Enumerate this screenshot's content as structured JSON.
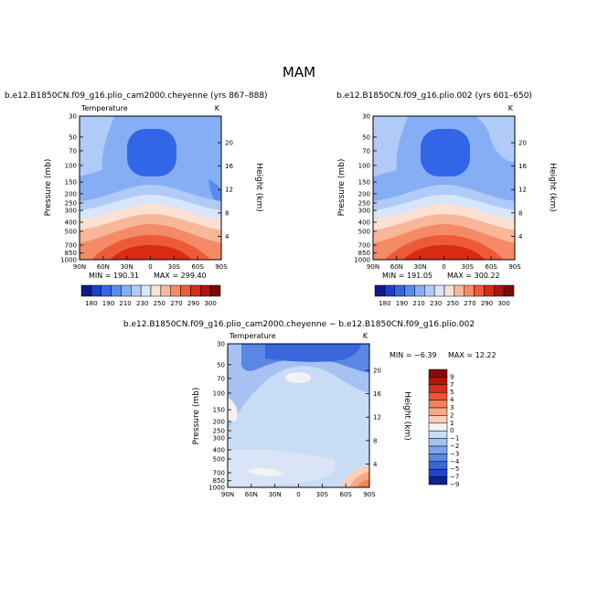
{
  "page": {
    "title": "MAM"
  },
  "chart_data": [
    {
      "type": "heatmap",
      "title": "b.e12.B1850CN.f09_g16.plio_cam2000.cheyenne (yrs 867–888)",
      "field_label": "Temperature",
      "units": "K",
      "ylabel": "Pressure (mb)",
      "ylabel_right": "Height (km)",
      "x_ticks": [
        "90N",
        "60N",
        "30N",
        "0",
        "30S",
        "60S",
        "90S"
      ],
      "y_ticks": [
        "30",
        "50",
        "70",
        "100",
        "150",
        "200",
        "250",
        "300",
        "400",
        "500",
        "700",
        "850",
        "1000"
      ],
      "height_ticks": [
        "20",
        "16",
        "12",
        "8",
        "4"
      ],
      "min_label": "MIN = 190.31",
      "max_label": "MAX = 299.40",
      "colorbar_labels": [
        "180",
        "190",
        "210",
        "230",
        "250",
        "270",
        "290",
        "300"
      ],
      "ylim": [
        1000,
        30
      ],
      "xlim": [
        90,
        -90
      ]
    },
    {
      "type": "heatmap",
      "title": "b.e12.B1850CN.f09_g16.plio.002 (yrs 601–650)",
      "field_label": "",
      "units": "K",
      "ylabel": "Pressure (mb)",
      "ylabel_right": "Height (km)",
      "x_ticks": [
        "90N",
        "60N",
        "30N",
        "0",
        "30S",
        "60S",
        "90S"
      ],
      "y_ticks": [
        "30",
        "50",
        "70",
        "100",
        "150",
        "200",
        "250",
        "300",
        "400",
        "500",
        "700",
        "850",
        "1000"
      ],
      "height_ticks": [
        "20",
        "16",
        "12",
        "8",
        "4"
      ],
      "min_label": "MIN = 191.05",
      "max_label": "MAX = 300.22",
      "colorbar_labels": [
        "180",
        "190",
        "210",
        "230",
        "250",
        "270",
        "290",
        "300"
      ],
      "ylim": [
        1000,
        30
      ],
      "xlim": [
        90,
        -90
      ]
    },
    {
      "type": "heatmap",
      "title": "b.e12.B1850CN.f09_g16.plio_cam2000.cheyenne − b.e12.B1850CN.f09_g16.plio.002",
      "field_label": "Temperature",
      "units": "K",
      "ylabel": "Pressure (mb)",
      "ylabel_right": "Height (km)",
      "x_ticks": [
        "90N",
        "60N",
        "30N",
        "0",
        "30S",
        "60S",
        "90S"
      ],
      "y_ticks": [
        "30",
        "50",
        "70",
        "100",
        "150",
        "200",
        "250",
        "300",
        "400",
        "500",
        "700",
        "850",
        "1000"
      ],
      "height_ticks": [
        "20",
        "16",
        "12",
        "8",
        "4"
      ],
      "min_label": "MIN =  −6.39",
      "max_label": "MAX =  12.22",
      "colorbar_labels": [
        "9",
        "7",
        "5",
        "4",
        "3",
        "2",
        "1",
        "0",
        "−1",
        "−2",
        "−3",
        "−4",
        "−5",
        "−7",
        "−9"
      ],
      "ylim": [
        1000,
        30
      ],
      "xlim": [
        90,
        -90
      ]
    }
  ],
  "colors": {
    "abs_scale": [
      "#0a1a8c",
      "#1a3fc8",
      "#3366e6",
      "#5a8cf0",
      "#86aef5",
      "#b0cbf8",
      "#d8e6fb",
      "#fbe1d3",
      "#f9b79a",
      "#f58a66",
      "#ee5a38",
      "#d92a14",
      "#b0140a",
      "#7a0c05"
    ],
    "diff_scale": [
      "#8a0c08",
      "#b4140c",
      "#d6301a",
      "#ef5534",
      "#f67f5c",
      "#f9a886",
      "#fbcfb5",
      "#f3f3f3",
      "#c8dcf6",
      "#a6c2f2",
      "#7ea4ec",
      "#5a86e4",
      "#3a66dc",
      "#1d45c8",
      "#0c2390"
    ]
  }
}
